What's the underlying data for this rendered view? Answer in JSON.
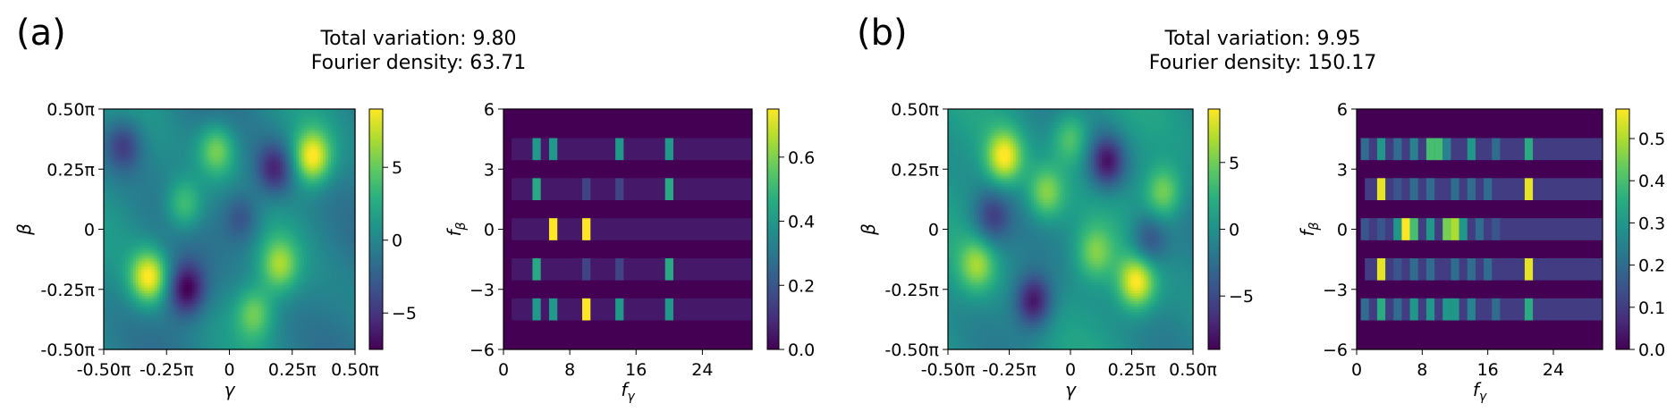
{
  "panels": [
    {
      "label": "(a)",
      "title_line1": "Total variation: 9.80",
      "title_line2": "Fourier density: 63.71"
    },
    {
      "label": "(b)",
      "title_line1": "Total variation: 9.95",
      "title_line2": "Fourier density: 150.17"
    }
  ],
  "chart_data": [
    {
      "type": "heatmap",
      "panel": "(a)",
      "xlabel": "γ",
      "ylabel": "β",
      "xlim": [
        -0.5,
        0.5
      ],
      "ylim": [
        -0.5,
        0.5
      ],
      "x_ticks": [
        "-0.50π",
        "-0.25π",
        "0",
        "0.25π",
        "0.50π"
      ],
      "y_ticks": [
        "0.50π",
        "0.25π",
        "0",
        "-0.25π",
        "-0.50π"
      ],
      "colorbar": {
        "vmin": -7.5,
        "vmax": 9,
        "ticks": [
          "5",
          "0",
          "−5"
        ],
        "tick_values": [
          5,
          0,
          -5
        ]
      },
      "colormap": "viridis",
      "peaks": [
        {
          "x": -0.32,
          "y": -0.2,
          "amp": 9
        },
        {
          "x": 0.33,
          "y": 0.3,
          "amp": 9
        },
        {
          "x": -0.05,
          "y": 0.33,
          "amp": 6
        },
        {
          "x": 0.2,
          "y": -0.15,
          "amp": 6
        },
        {
          "x": -0.18,
          "y": 0.1,
          "amp": 5
        },
        {
          "x": 0.1,
          "y": -0.35,
          "amp": 5
        },
        {
          "x": -0.17,
          "y": -0.25,
          "amp": -7.5
        },
        {
          "x": 0.18,
          "y": 0.25,
          "amp": -6
        },
        {
          "x": -0.42,
          "y": 0.35,
          "amp": -5
        },
        {
          "x": 0.05,
          "y": 0.05,
          "amp": -4
        }
      ]
    },
    {
      "type": "heatmap",
      "panel": "(a)",
      "xlabel": "f_γ",
      "ylabel": "f_β",
      "xlim": [
        0,
        30
      ],
      "ylim": [
        -6,
        6
      ],
      "x_ticks": [
        "0",
        "8",
        "16",
        "24"
      ],
      "x_tick_values": [
        0,
        8,
        16,
        24
      ],
      "y_ticks": [
        "6",
        "3",
        "0",
        "−3",
        "−6"
      ],
      "y_tick_values": [
        6,
        3,
        0,
        -3,
        -6
      ],
      "colorbar": {
        "vmin": 0,
        "vmax": 0.75,
        "ticks": [
          "0.6",
          "0.4",
          "0.2",
          "0.0"
        ],
        "tick_values": [
          0.6,
          0.4,
          0.2,
          0.0
        ]
      },
      "colormap": "viridis",
      "rows": [
        4,
        2,
        0,
        -2,
        -4
      ],
      "row_background": 0.05,
      "cells": [
        {
          "fy": 4,
          "fb": 4,
          "v": 0.4
        },
        {
          "fy": 6,
          "fb": 4,
          "v": 0.4
        },
        {
          "fy": 14,
          "fb": 4,
          "v": 0.4
        },
        {
          "fy": 20,
          "fb": 4,
          "v": 0.4
        },
        {
          "fy": 4,
          "fb": 2,
          "v": 0.45
        },
        {
          "fy": 10,
          "fb": 2,
          "v": 0.15
        },
        {
          "fy": 14,
          "fb": 2,
          "v": 0.15
        },
        {
          "fy": 20,
          "fb": 2,
          "v": 0.45
        },
        {
          "fy": 6,
          "fb": 0,
          "v": 0.75
        },
        {
          "fy": 10,
          "fb": 0,
          "v": 0.75
        },
        {
          "fy": 4,
          "fb": -2,
          "v": 0.45
        },
        {
          "fy": 10,
          "fb": -2,
          "v": 0.15
        },
        {
          "fy": 14,
          "fb": -2,
          "v": 0.15
        },
        {
          "fy": 20,
          "fb": -2,
          "v": 0.45
        },
        {
          "fy": 4,
          "fb": -4,
          "v": 0.4
        },
        {
          "fy": 6,
          "fb": -4,
          "v": 0.4
        },
        {
          "fy": 10,
          "fb": -4,
          "v": 0.75
        },
        {
          "fy": 14,
          "fb": -4,
          "v": 0.4
        },
        {
          "fy": 20,
          "fb": -4,
          "v": 0.4
        }
      ]
    },
    {
      "type": "heatmap",
      "panel": "(b)",
      "xlabel": "γ",
      "ylabel": "β",
      "xlim": [
        -0.5,
        0.5
      ],
      "ylim": [
        -0.5,
        0.5
      ],
      "x_ticks": [
        "-0.50π",
        "-0.25π",
        "0",
        "0.25π",
        "0.50π"
      ],
      "y_ticks": [
        "0.50π",
        "0.25π",
        "0",
        "-0.25π",
        "-0.50π"
      ],
      "colorbar": {
        "vmin": -9,
        "vmax": 9,
        "ticks": [
          "5",
          "0",
          "−5"
        ],
        "tick_values": [
          5,
          0,
          -5
        ]
      },
      "colormap": "viridis",
      "peaks": [
        {
          "x": -0.27,
          "y": 0.3,
          "amp": 9
        },
        {
          "x": 0.27,
          "y": -0.22,
          "amp": 9
        },
        {
          "x": -0.38,
          "y": -0.15,
          "amp": 6
        },
        {
          "x": 0.38,
          "y": 0.15,
          "amp": 6
        },
        {
          "x": -0.1,
          "y": 0.15,
          "amp": 6
        },
        {
          "x": 0.1,
          "y": -0.1,
          "amp": 5
        },
        {
          "x": 0.0,
          "y": 0.38,
          "amp": 5
        },
        {
          "x": 0.15,
          "y": 0.28,
          "amp": -8
        },
        {
          "x": -0.15,
          "y": -0.3,
          "amp": -8
        },
        {
          "x": -0.32,
          "y": 0.05,
          "amp": -5
        },
        {
          "x": 0.32,
          "y": -0.05,
          "amp": -5
        }
      ]
    },
    {
      "type": "heatmap",
      "panel": "(b)",
      "xlabel": "f_γ",
      "ylabel": "f_β",
      "xlim": [
        0,
        30
      ],
      "ylim": [
        -6,
        6
      ],
      "x_ticks": [
        "0",
        "8",
        "16",
        "24"
      ],
      "x_tick_values": [
        0,
        8,
        16,
        24
      ],
      "y_ticks": [
        "6",
        "3",
        "0",
        "−3",
        "−6"
      ],
      "y_tick_values": [
        6,
        3,
        0,
        -3,
        -6
      ],
      "colorbar": {
        "vmin": 0,
        "vmax": 0.57,
        "ticks": [
          "0.5",
          "0.4",
          "0.3",
          "0.2",
          "0.1",
          "0.0"
        ],
        "tick_values": [
          0.5,
          0.4,
          0.3,
          0.2,
          0.1,
          0.0
        ]
      },
      "colormap": "viridis",
      "rows": [
        4,
        2,
        0,
        -2,
        -4
      ],
      "row_background": 0.1,
      "cells": [
        {
          "fy": 1,
          "fb": 4,
          "v": 0.2
        },
        {
          "fy": 3,
          "fb": 4,
          "v": 0.3
        },
        {
          "fy": 5,
          "fb": 4,
          "v": 0.2
        },
        {
          "fy": 7,
          "fb": 4,
          "v": 0.25
        },
        {
          "fy": 9,
          "fb": 4,
          "v": 0.4
        },
        {
          "fy": 10,
          "fb": 4,
          "v": 0.4
        },
        {
          "fy": 11,
          "fb": 4,
          "v": 0.25
        },
        {
          "fy": 14,
          "fb": 4,
          "v": 0.3
        },
        {
          "fy": 17,
          "fb": 4,
          "v": 0.2
        },
        {
          "fy": 21,
          "fb": 4,
          "v": 0.35
        },
        {
          "fy": 3,
          "fb": 2,
          "v": 0.55
        },
        {
          "fy": 5,
          "fb": 2,
          "v": 0.15
        },
        {
          "fy": 7,
          "fb": 2,
          "v": 0.2
        },
        {
          "fy": 9,
          "fb": 2,
          "v": 0.2
        },
        {
          "fy": 12,
          "fb": 2,
          "v": 0.2
        },
        {
          "fy": 14,
          "fb": 2,
          "v": 0.2
        },
        {
          "fy": 16,
          "fb": 2,
          "v": 0.2
        },
        {
          "fy": 21,
          "fb": 2,
          "v": 0.55
        },
        {
          "fy": 1,
          "fb": 0,
          "v": 0.15
        },
        {
          "fy": 3,
          "fb": 0,
          "v": 0.15
        },
        {
          "fy": 5,
          "fb": 0,
          "v": 0.3
        },
        {
          "fy": 6,
          "fb": 0,
          "v": 0.57
        },
        {
          "fy": 7,
          "fb": 0,
          "v": 0.4
        },
        {
          "fy": 9,
          "fb": 0,
          "v": 0.3
        },
        {
          "fy": 11,
          "fb": 0,
          "v": 0.45
        },
        {
          "fy": 12,
          "fb": 0,
          "v": 0.5
        },
        {
          "fy": 13,
          "fb": 0,
          "v": 0.3
        },
        {
          "fy": 15,
          "fb": 0,
          "v": 0.2
        },
        {
          "fy": 17,
          "fb": 0,
          "v": 0.15
        },
        {
          "fy": 3,
          "fb": -2,
          "v": 0.55
        },
        {
          "fy": 5,
          "fb": -2,
          "v": 0.15
        },
        {
          "fy": 7,
          "fb": -2,
          "v": 0.2
        },
        {
          "fy": 9,
          "fb": -2,
          "v": 0.2
        },
        {
          "fy": 12,
          "fb": -2,
          "v": 0.2
        },
        {
          "fy": 14,
          "fb": -2,
          "v": 0.2
        },
        {
          "fy": 16,
          "fb": -2,
          "v": 0.2
        },
        {
          "fy": 21,
          "fb": -2,
          "v": 0.55
        },
        {
          "fy": 1,
          "fb": -4,
          "v": 0.2
        },
        {
          "fy": 3,
          "fb": -4,
          "v": 0.35
        },
        {
          "fy": 5,
          "fb": -4,
          "v": 0.2
        },
        {
          "fy": 7,
          "fb": -4,
          "v": 0.3
        },
        {
          "fy": 9,
          "fb": -4,
          "v": 0.3
        },
        {
          "fy": 11,
          "fb": -4,
          "v": 0.3
        },
        {
          "fy": 12,
          "fb": -4,
          "v": 0.3
        },
        {
          "fy": 14,
          "fb": -4,
          "v": 0.25
        },
        {
          "fy": 17,
          "fb": -4,
          "v": 0.2
        },
        {
          "fy": 21,
          "fb": -4,
          "v": 0.35
        }
      ]
    }
  ]
}
